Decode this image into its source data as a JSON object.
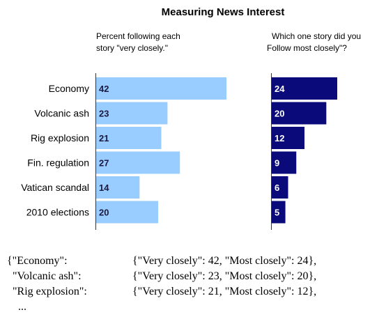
{
  "chart_data": [
    {
      "type": "bar",
      "orientation": "horizontal",
      "title": "Measuring News Interest",
      "subtitle": [
        "Percent following each",
        "story \"very closely.\""
      ],
      "categories": [
        "Economy",
        "Volcanic ash",
        "Rig explosion",
        "Fin. regulation",
        "Vatican scandal",
        "2010 elections"
      ],
      "values": [
        42,
        23,
        21,
        27,
        14,
        20
      ],
      "color": "#99ccff",
      "xlim": [
        0,
        42
      ],
      "grid": false
    },
    {
      "type": "bar",
      "orientation": "horizontal",
      "subtitle": [
        "Which one story did you",
        "Follow most closely\"?"
      ],
      "categories": [
        "Economy",
        "Volcanic ash",
        "Rig explosion",
        "Fin. regulation",
        "Vatican scandal",
        "2010 elections"
      ],
      "values": [
        24,
        20,
        12,
        9,
        6,
        5
      ],
      "color": "#0a0a7a",
      "xlim": [
        0,
        24
      ],
      "grid": false
    }
  ],
  "code_lines": [
    {
      "key": "{\"Economy\":",
      "value": "{\"Very closely\": 42, \"Most closely\": 24},"
    },
    {
      "key": "  \"Volcanic ash\":",
      "value": "{\"Very closely\": 23, \"Most closely\": 20},"
    },
    {
      "key": "  \"Rig explosion\":",
      "value": "{\"Very closely\": 21, \"Most closely\": 12},"
    },
    {
      "key": "    ...",
      "value": ""
    }
  ]
}
